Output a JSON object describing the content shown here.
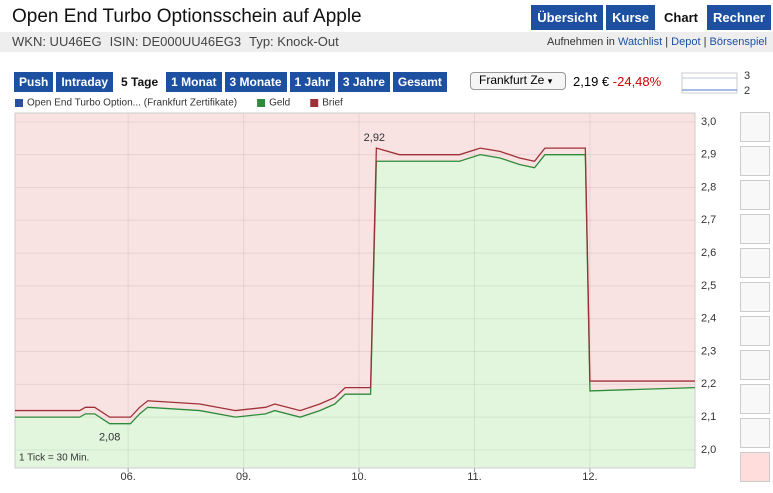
{
  "header": {
    "title": "Open End Turbo Optionsschein auf Apple",
    "nav": [
      "Übersicht",
      "Kurse",
      "Chart",
      "Rechner"
    ],
    "info": [
      "WKN: UU46EG",
      "ISIN: DE000UU46EG3",
      "Typ: Knock-Out"
    ],
    "actions_prefix": "Aufnehmen in",
    "actions": [
      "Watchlist",
      "Depot",
      "Börsenspiel"
    ]
  },
  "controls": {
    "ranges": [
      "Push",
      "Intraday",
      "5 Tage",
      "1 Monat",
      "3 Monate",
      "1 Jahr",
      "3 Jahre",
      "Gesamt"
    ],
    "exchange": "Frankfurt Ze",
    "price": "2,19 €",
    "change": "-24,48%",
    "mini_labels": [
      "3",
      "2"
    ]
  },
  "chart_data": {
    "type": "line",
    "reference_entry": {
      "name": "Open End Turbo Option... (Frankfurt Zertifikate)",
      "color": "#2a4f9e"
    },
    "x": [
      0.02,
      0.58,
      0.63,
      0.71,
      0.84,
      1.02,
      1.1,
      1.17,
      1.62,
      1.93,
      2.19,
      2.27,
      2.49,
      2.66,
      2.79,
      2.88,
      3.1,
      3.15,
      3.35,
      3.53,
      3.87,
      4.05,
      4.22,
      4.39,
      4.52,
      4.61,
      4.96,
      5.0,
      5.91
    ],
    "series": [
      {
        "name": "Geld",
        "color": "#2e8b3a",
        "values": [
          2.1,
          2.1,
          2.11,
          2.11,
          2.08,
          2.08,
          2.11,
          2.13,
          2.12,
          2.1,
          2.11,
          2.12,
          2.1,
          2.12,
          2.14,
          2.17,
          2.17,
          2.88,
          2.88,
          2.88,
          2.88,
          2.9,
          2.89,
          2.87,
          2.86,
          2.9,
          2.9,
          2.18,
          2.19
        ]
      },
      {
        "name": "Brief",
        "color": "#a03038",
        "values": [
          2.12,
          2.12,
          2.13,
          2.13,
          2.1,
          2.1,
          2.13,
          2.15,
          2.14,
          2.12,
          2.13,
          2.14,
          2.12,
          2.14,
          2.16,
          2.19,
          2.19,
          2.92,
          2.9,
          2.9,
          2.9,
          2.92,
          2.91,
          2.89,
          2.88,
          2.92,
          2.92,
          2.21,
          2.21
        ]
      }
    ],
    "annotations": [
      "2,92",
      "2,08"
    ],
    "note": "1 Tick = 30 Min.",
    "xlim": [
      0.02,
      5.91
    ],
    "xticks": [
      {
        "value": 1,
        "label": "06."
      },
      {
        "value": 2,
        "label": "09."
      },
      {
        "value": 3,
        "label": "10."
      },
      {
        "value": 4,
        "label": "11."
      },
      {
        "value": 5,
        "label": "12."
      }
    ],
    "ylim": [
      1.945,
      3.027
    ],
    "yticks": [
      {
        "value": 2.0,
        "label": "2,0"
      },
      {
        "value": 2.1,
        "label": "2,1"
      },
      {
        "value": 2.2,
        "label": "2,2"
      },
      {
        "value": 2.3,
        "label": "2,3"
      },
      {
        "value": 2.4,
        "label": "2,4"
      },
      {
        "value": 2.5,
        "label": "2,5"
      },
      {
        "value": 2.6,
        "label": "2,6"
      },
      {
        "value": 2.7,
        "label": "2,7"
      },
      {
        "value": 2.8,
        "label": "2,8"
      },
      {
        "value": 2.9,
        "label": "2,9"
      },
      {
        "value": 3.0,
        "label": "3,0"
      }
    ],
    "grid": true
  }
}
